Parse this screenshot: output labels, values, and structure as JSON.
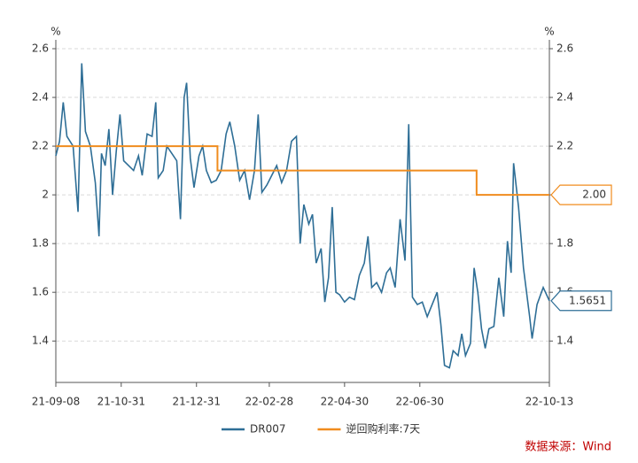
{
  "chart_data": {
    "type": "line",
    "y_unit": "%",
    "y2_unit": "%",
    "source": "数据来源：Wind",
    "xlim": [
      "21-09-08",
      "22-10-13"
    ],
    "xticks": [
      "21-09-08",
      "21-10-31",
      "21-12-31",
      "22-02-28",
      "22-04-30",
      "22-06-30",
      "22-10-13"
    ],
    "ylim": [
      1.23,
      2.6
    ],
    "yticks": [
      1.4,
      1.6,
      1.8,
      2,
      2.2,
      2.4,
      2.6
    ],
    "y2lim": [
      1.23,
      2.6
    ],
    "y2ticks": [
      1.4,
      1.6,
      1.8,
      2,
      2.2,
      2.4,
      2.6
    ],
    "grid": true,
    "legend": "bottom",
    "series": [
      {
        "name": "DR007",
        "color": "#2e6e96",
        "axis": "y",
        "x": [
          "21-09-08",
          "21-09-11",
          "21-09-14",
          "21-09-17",
          "21-09-22",
          "21-09-26",
          "21-09-29",
          "21-10-02",
          "21-10-06",
          "21-10-10",
          "21-10-13",
          "21-10-15",
          "21-10-18",
          "21-10-21",
          "21-10-24",
          "21-10-27",
          "21-10-30",
          "21-11-02",
          "21-11-06",
          "21-11-10",
          "21-11-14",
          "21-11-17",
          "21-11-21",
          "21-11-25",
          "21-11-28",
          "21-11-30",
          "21-12-04",
          "21-12-07",
          "21-12-11",
          "21-12-15",
          "21-12-18",
          "21-12-21",
          "21-12-23",
          "21-12-26",
          "21-12-29",
          "22-01-02",
          "22-01-05",
          "22-01-08",
          "22-01-12",
          "22-01-16",
          "22-01-20",
          "22-01-24",
          "22-01-27",
          "22-01-31",
          "22-02-04",
          "22-02-08",
          "22-02-12",
          "22-02-16",
          "22-02-19",
          "22-02-22",
          "22-02-26",
          "22-03-02",
          "22-03-06",
          "22-03-10",
          "22-03-14",
          "22-03-18",
          "22-03-22",
          "22-03-25",
          "22-03-28",
          "22-04-01",
          "22-04-04",
          "22-04-07",
          "22-04-11",
          "22-04-14",
          "22-04-17",
          "22-04-20",
          "22-04-23",
          "22-04-26",
          "22-04-30",
          "22-05-04",
          "22-05-08",
          "22-05-12",
          "22-05-16",
          "22-05-19",
          "22-05-22",
          "22-05-26",
          "22-05-30",
          "22-06-03",
          "22-06-06",
          "22-06-10",
          "22-06-14",
          "22-06-18",
          "22-06-21",
          "22-06-24",
          "22-06-28",
          "22-07-02",
          "22-07-06",
          "22-07-10",
          "22-07-14",
          "22-07-17",
          "22-07-20",
          "22-07-24",
          "22-07-27",
          "22-07-31",
          "22-08-03",
          "22-08-06",
          "22-08-10",
          "22-08-13",
          "22-08-16",
          "22-08-19",
          "22-08-22",
          "22-08-25",
          "22-08-29",
          "22-09-02",
          "22-09-06",
          "22-09-09",
          "22-09-12",
          "22-09-14",
          "22-09-18",
          "22-09-22",
          "22-09-27",
          "22-09-29",
          "22-10-03",
          "22-10-08",
          "22-10-13"
        ],
        "values": [
          2.16,
          2.22,
          2.38,
          2.24,
          2.2,
          1.93,
          2.54,
          2.26,
          2.2,
          2.05,
          1.83,
          2.17,
          2.12,
          2.27,
          2.0,
          2.18,
          2.33,
          2.14,
          2.12,
          2.1,
          2.16,
          2.08,
          2.25,
          2.24,
          2.38,
          2.07,
          2.1,
          2.2,
          2.17,
          2.14,
          1.9,
          2.4,
          2.46,
          2.15,
          2.03,
          2.16,
          2.2,
          2.1,
          2.05,
          2.06,
          2.1,
          2.25,
          2.3,
          2.2,
          2.06,
          2.1,
          1.98,
          2.1,
          2.33,
          2.01,
          2.04,
          2.08,
          2.12,
          2.05,
          2.1,
          2.22,
          2.24,
          1.8,
          1.96,
          1.88,
          1.92,
          1.72,
          1.78,
          1.56,
          1.66,
          1.95,
          1.6,
          1.59,
          1.56,
          1.58,
          1.57,
          1.67,
          1.72,
          1.83,
          1.62,
          1.64,
          1.6,
          1.68,
          1.7,
          1.62,
          1.9,
          1.73,
          2.29,
          1.58,
          1.55,
          1.56,
          1.5,
          1.55,
          1.6,
          1.47,
          1.3,
          1.29,
          1.36,
          1.34,
          1.43,
          1.34,
          1.39,
          1.7,
          1.6,
          1.45,
          1.37,
          1.45,
          1.46,
          1.66,
          1.5,
          1.81,
          1.68,
          2.13,
          1.95,
          1.7,
          1.5,
          1.41,
          1.55,
          1.62,
          1.5651
        ]
      },
      {
        "name": "逆回购利率:7天",
        "color": "#f08c1e",
        "axis": "y2",
        "step": true,
        "x": [
          "21-09-08",
          "22-01-17",
          "22-08-15",
          "22-10-13"
        ],
        "values": [
          2.2,
          2.1,
          2.0,
          2.0
        ],
        "value_labels": [
          null,
          null,
          null,
          "2.00"
        ]
      }
    ]
  }
}
